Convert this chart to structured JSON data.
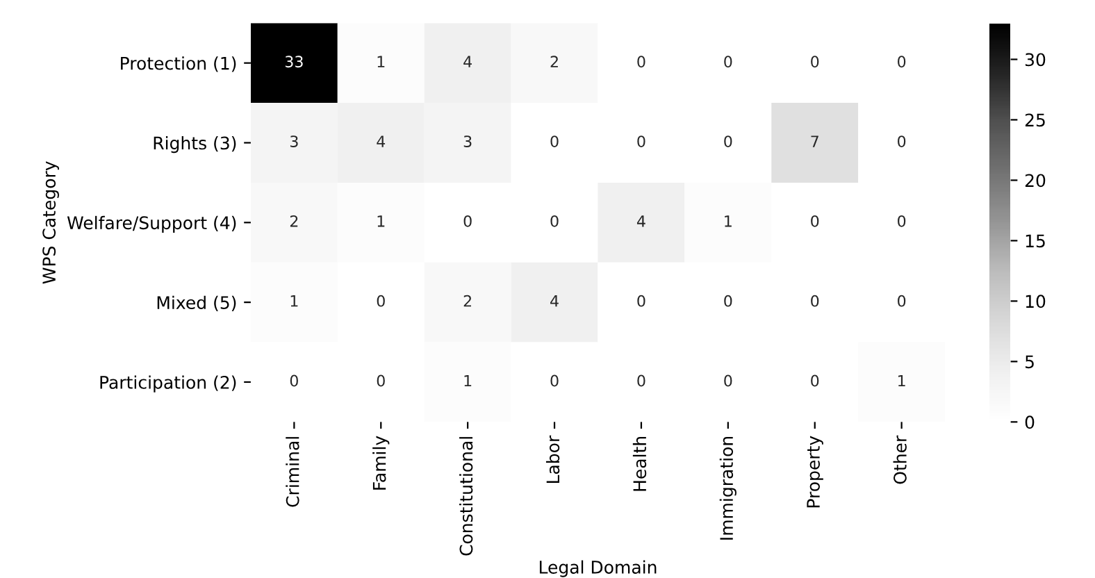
{
  "chart_data": {
    "type": "heatmap",
    "xlabel": "Legal Domain",
    "ylabel": "WPS Category",
    "categories": [
      "Criminal",
      "Family",
      "Constitutional",
      "Labor",
      "Health",
      "Immigration",
      "Property",
      "Other"
    ],
    "y_categories": [
      "Protection (1)",
      "Rights (3)",
      "Welfare/Support (4)",
      "Mixed (5)",
      "Participation (2)"
    ],
    "cells": [
      [
        33,
        1,
        4,
        2,
        0,
        0,
        0,
        0
      ],
      [
        3,
        4,
        3,
        0,
        0,
        0,
        7,
        0
      ],
      [
        2,
        1,
        0,
        0,
        4,
        1,
        0,
        0
      ],
      [
        1,
        0,
        2,
        4,
        0,
        0,
        0,
        0
      ],
      [
        0,
        0,
        1,
        0,
        0,
        0,
        0,
        1
      ]
    ],
    "data_labels": true,
    "clim": [
      0,
      33
    ],
    "cticks": [
      0,
      5,
      10,
      15,
      20,
      25,
      30
    ]
  }
}
